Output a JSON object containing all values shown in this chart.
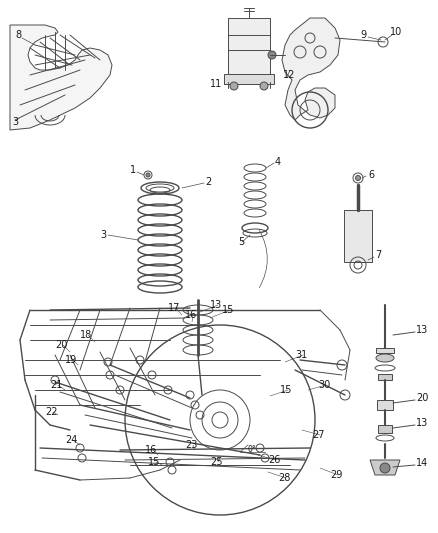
{
  "bg_color": "#ffffff",
  "line_color": "#4a4a4a",
  "label_color": "#1a1a1a",
  "figsize": [
    4.38,
    5.33
  ],
  "dpi": 100,
  "xlim": [
    0,
    438
  ],
  "ylim": [
    0,
    533
  ]
}
